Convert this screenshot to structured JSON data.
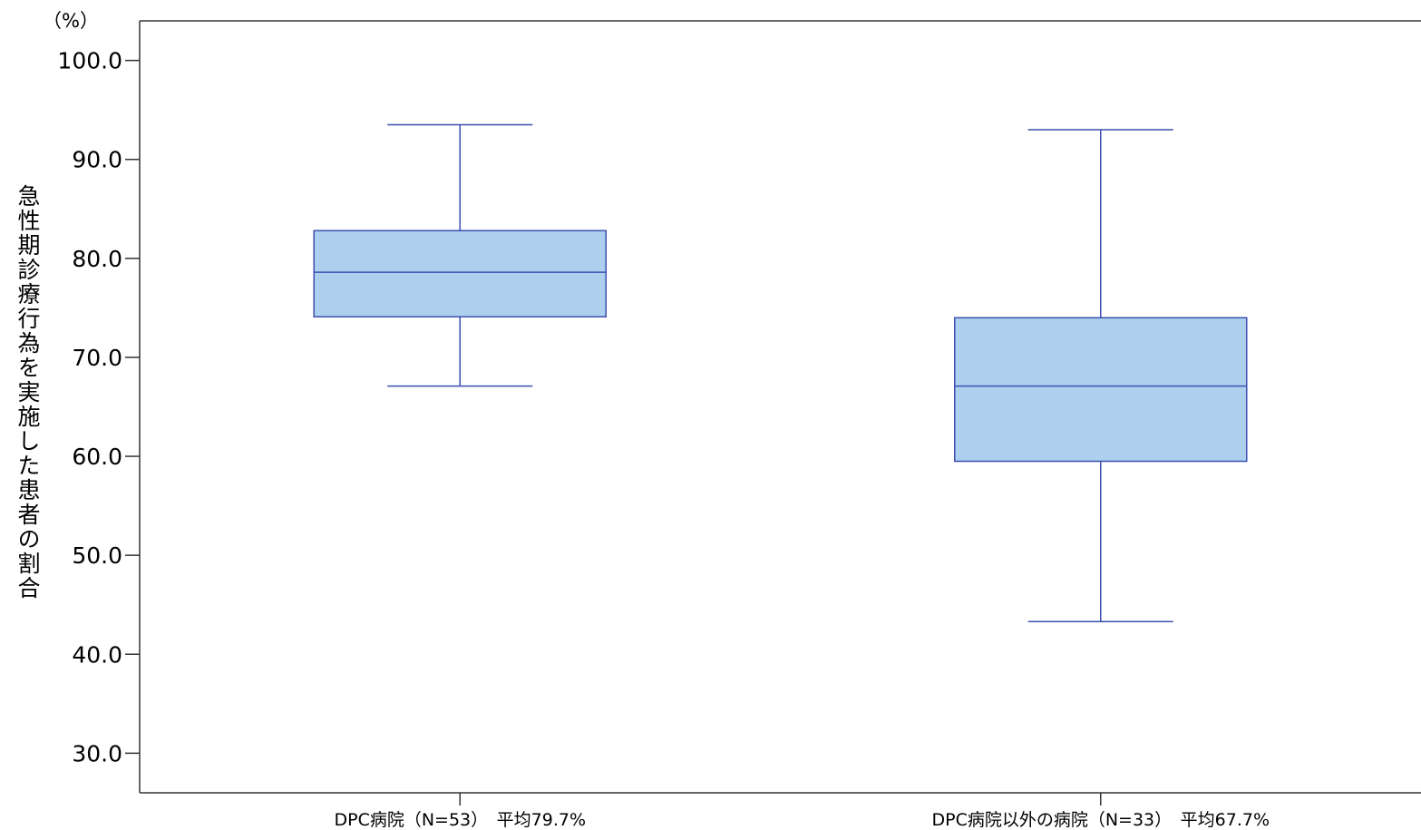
{
  "chart_data": {
    "type": "box",
    "y_unit_label": "（%）",
    "ylabel": "急性期診療行為を実施した患者の割合",
    "xlabel": "",
    "ylim": [
      26.0,
      104.0
    ],
    "yticks": [
      "30.0",
      "40.0",
      "50.0",
      "60.0",
      "70.0",
      "80.0",
      "90.0",
      "100.0"
    ],
    "grid": false,
    "legend": "none",
    "colors": {
      "box_fill": "#acd0ee",
      "box_stroke": "#3b4fb0",
      "axis": "#333333"
    },
    "series": [
      {
        "category": "DPC病院（N=53）　平均79.7%",
        "whisker_low": 67.1,
        "q1": 74.1,
        "median": 78.6,
        "q3": 82.8,
        "whisker_high": 93.5
      },
      {
        "category": "DPC病院以外の病院（N=33）　平均67.7%",
        "whisker_low": 43.3,
        "q1": 59.5,
        "median": 67.1,
        "q3": 74.0,
        "whisker_high": 93.0
      }
    ]
  }
}
